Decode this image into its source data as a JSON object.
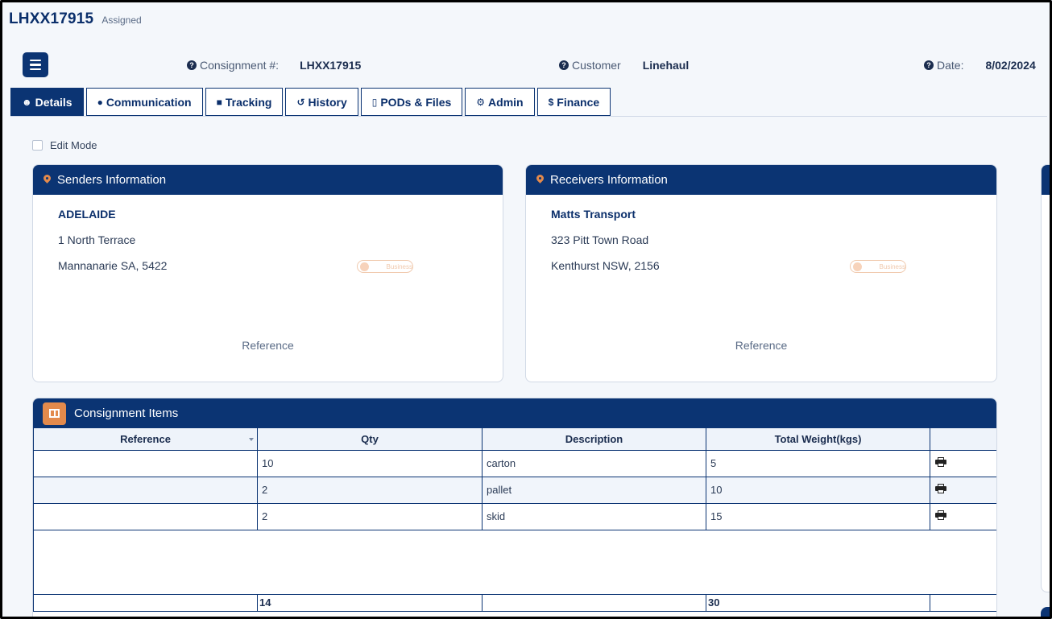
{
  "header": {
    "consignment_id": "LHXX17915",
    "status": "Assigned"
  },
  "info": {
    "consignment_label": "Consignment #:",
    "consignment_value": "LHXX17915",
    "customer_label": "Customer",
    "customer_value": "Linehaul",
    "date_label": "Date:",
    "date_value": "8/02/2024"
  },
  "tabs": [
    {
      "label": "Details",
      "icon": "user-icon",
      "glyph": "☻"
    },
    {
      "label": "Communication",
      "icon": "comment-icon",
      "glyph": "●"
    },
    {
      "label": "Tracking",
      "icon": "truck-icon",
      "glyph": "■"
    },
    {
      "label": "History",
      "icon": "history-icon",
      "glyph": "↺"
    },
    {
      "label": "PODs & Files",
      "icon": "file-icon",
      "glyph": "▯"
    },
    {
      "label": "Admin",
      "icon": "gear-icon",
      "glyph": "⚙"
    },
    {
      "label": "Finance",
      "icon": "dollar-icon",
      "glyph": "$"
    }
  ],
  "edit_mode_label": "Edit Mode",
  "senders": {
    "title": "Senders Information",
    "name": "ADELAIDE",
    "line1": "1 North Terrace",
    "line2": "Mannanarie SA, 5422",
    "toggle_label": "Business",
    "reference_label": "Reference"
  },
  "receivers": {
    "title": "Receivers Information",
    "name": "Matts Transport",
    "line1": "323 Pitt Town Road",
    "line2": "Kenthurst NSW, 2156",
    "toggle_label": "Business",
    "reference_label": "Reference"
  },
  "items": {
    "title": "Consignment Items",
    "columns": [
      "Reference",
      "Qty",
      "Description",
      "Total Weight(kgs)",
      ""
    ],
    "rows": [
      {
        "reference": "",
        "qty": "10",
        "description": "carton",
        "weight": "5"
      },
      {
        "reference": "",
        "qty": "2",
        "description": "pallet",
        "weight": "10"
      },
      {
        "reference": "",
        "qty": "2",
        "description": "skid",
        "weight": "15"
      }
    ],
    "totals": {
      "qty": "14",
      "weight": "30"
    }
  },
  "colors": {
    "primary": "#0b3473",
    "accent": "#e38a4c",
    "background": "#f4f7fb"
  }
}
